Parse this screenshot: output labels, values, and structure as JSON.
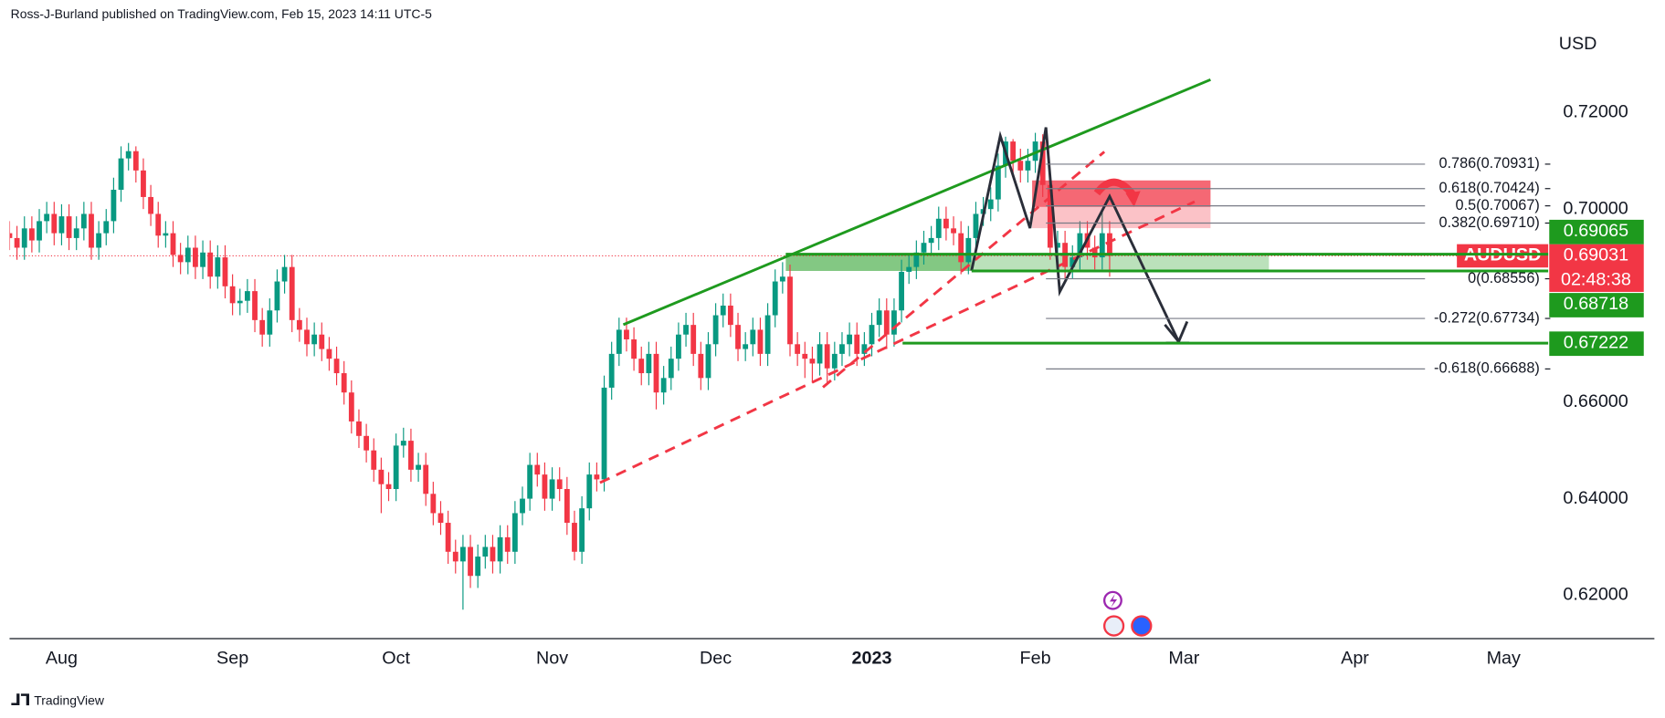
{
  "chart_data": {
    "type": "candlestick",
    "header": "Ross-J-Burland published on TradingView.com, Feb 15, 2023 14:11 UTC-5",
    "footer": "TradingView",
    "currency": "USD",
    "symbol": "AUDUSD",
    "price": 0.69031,
    "countdown": "02:48:38",
    "up_color": "#089981",
    "down_color": "#f23645",
    "price_color": "#f23645",
    "level_color": "#1e9a1e",
    "levels": [
      0.69065,
      0.68718,
      0.67222
    ],
    "fib": [
      {
        "value": 0.70931,
        "label": "0.786(0.70931)"
      },
      {
        "value": 0.70424,
        "label": "0.618(0.70424)"
      },
      {
        "value": 0.70067,
        "label": "0.5(0.70067)"
      },
      {
        "value": 0.6971,
        "label": "0.382(0.69710)"
      },
      {
        "value": 0.68556,
        "label": "0(0.68556)"
      },
      {
        "value": 0.67734,
        "label": "-0.272(0.67734)"
      },
      {
        "value": 0.66688,
        "label": "-0.618(0.66688)"
      }
    ],
    "ylim": [
      0.611,
      0.738
    ],
    "yticks": [
      {
        "value": 0.72,
        "label": "0.72000"
      },
      {
        "value": 0.7,
        "label": "0.70000"
      },
      {
        "value": 0.66,
        "label": "0.66000"
      },
      {
        "value": 0.64,
        "label": "0.64000"
      },
      {
        "value": 0.62,
        "label": "0.62000"
      }
    ],
    "xlim": [
      0,
      207
    ],
    "xticks": [
      {
        "value": 7,
        "label": "Aug"
      },
      {
        "value": 30,
        "label": "Sep"
      },
      {
        "value": 52,
        "label": "Oct"
      },
      {
        "value": 73,
        "label": "Nov"
      },
      {
        "value": 95,
        "label": "Dec"
      },
      {
        "value": 116,
        "label": "2023",
        "bold": true
      },
      {
        "value": 138,
        "label": "Feb"
      },
      {
        "value": 158,
        "label": "Mar"
      },
      {
        "value": 181,
        "label": "Apr"
      },
      {
        "value": 201,
        "label": "May"
      }
    ],
    "candles": [
      [
        0.695,
        0.6975,
        0.6915,
        0.694
      ],
      [
        0.694,
        0.6965,
        0.6895,
        0.692
      ],
      [
        0.692,
        0.6985,
        0.6895,
        0.696
      ],
      [
        0.696,
        0.6985,
        0.691,
        0.6935
      ],
      [
        0.6935,
        0.7,
        0.691,
        0.6975
      ],
      [
        0.6975,
        0.7015,
        0.695,
        0.699
      ],
      [
        0.699,
        0.7015,
        0.6925,
        0.695
      ],
      [
        0.695,
        0.701,
        0.6925,
        0.6985
      ],
      [
        0.6985,
        0.701,
        0.6915,
        0.694
      ],
      [
        0.694,
        0.6985,
        0.6915,
        0.696
      ],
      [
        0.696,
        0.7015,
        0.6935,
        0.699
      ],
      [
        0.699,
        0.7015,
        0.6895,
        0.692
      ],
      [
        0.692,
        0.6975,
        0.6895,
        0.695
      ],
      [
        0.695,
        0.7,
        0.6925,
        0.6975
      ],
      [
        0.6975,
        0.7065,
        0.695,
        0.704
      ],
      [
        0.704,
        0.713,
        0.7015,
        0.7105
      ],
      [
        0.7105,
        0.7137,
        0.708,
        0.712
      ],
      [
        0.712,
        0.713,
        0.7055,
        0.708
      ],
      [
        0.708,
        0.7105,
        0.7,
        0.7025
      ],
      [
        0.7025,
        0.705,
        0.6965,
        0.699
      ],
      [
        0.699,
        0.7015,
        0.692,
        0.6945
      ],
      [
        0.6945,
        0.6975,
        0.692,
        0.695
      ],
      [
        0.695,
        0.6975,
        0.688,
        0.6905
      ],
      [
        0.6905,
        0.693,
        0.6865,
        0.689
      ],
      [
        0.689,
        0.6945,
        0.6865,
        0.692
      ],
      [
        0.692,
        0.6945,
        0.6855,
        0.688
      ],
      [
        0.688,
        0.6935,
        0.6855,
        0.691
      ],
      [
        0.691,
        0.6935,
        0.6835,
        0.686
      ],
      [
        0.686,
        0.6925,
        0.6835,
        0.69
      ],
      [
        0.69,
        0.6925,
        0.6815,
        0.684
      ],
      [
        0.684,
        0.6865,
        0.678,
        0.6805
      ],
      [
        0.6805,
        0.6835,
        0.678,
        0.681
      ],
      [
        0.681,
        0.6855,
        0.6785,
        0.683
      ],
      [
        0.683,
        0.6855,
        0.6745,
        0.677
      ],
      [
        0.677,
        0.6795,
        0.6715,
        0.674
      ],
      [
        0.674,
        0.6815,
        0.6715,
        0.679
      ],
      [
        0.679,
        0.6875,
        0.6765,
        0.685
      ],
      [
        0.685,
        0.6905,
        0.6825,
        0.688
      ],
      [
        0.688,
        0.6905,
        0.6745,
        0.677
      ],
      [
        0.677,
        0.6795,
        0.6725,
        0.675
      ],
      [
        0.675,
        0.6775,
        0.6695,
        0.672
      ],
      [
        0.672,
        0.6765,
        0.6695,
        0.674
      ],
      [
        0.674,
        0.6765,
        0.6685,
        0.671
      ],
      [
        0.671,
        0.6735,
        0.6665,
        0.669
      ],
      [
        0.669,
        0.6715,
        0.6635,
        0.666
      ],
      [
        0.666,
        0.6685,
        0.6595,
        0.662
      ],
      [
        0.662,
        0.6645,
        0.6535,
        0.656
      ],
      [
        0.656,
        0.6585,
        0.6505,
        0.653
      ],
      [
        0.653,
        0.6555,
        0.6475,
        0.65
      ],
      [
        0.65,
        0.6525,
        0.6435,
        0.646
      ],
      [
        0.646,
        0.6485,
        0.637,
        0.643
      ],
      [
        0.643,
        0.6455,
        0.6395,
        0.642
      ],
      [
        0.642,
        0.6535,
        0.6395,
        0.651
      ],
      [
        0.651,
        0.6547,
        0.6485,
        0.652
      ],
      [
        0.652,
        0.6545,
        0.6435,
        0.646
      ],
      [
        0.646,
        0.6495,
        0.6435,
        0.647
      ],
      [
        0.647,
        0.6495,
        0.6385,
        0.641
      ],
      [
        0.641,
        0.6435,
        0.6345,
        0.637
      ],
      [
        0.637,
        0.6395,
        0.6325,
        0.635
      ],
      [
        0.635,
        0.6375,
        0.6265,
        0.629
      ],
      [
        0.629,
        0.6315,
        0.6245,
        0.627
      ],
      [
        0.627,
        0.6325,
        0.617,
        0.63
      ],
      [
        0.63,
        0.6325,
        0.6215,
        0.624
      ],
      [
        0.624,
        0.6305,
        0.6215,
        0.628
      ],
      [
        0.628,
        0.6325,
        0.6255,
        0.63
      ],
      [
        0.63,
        0.6325,
        0.6245,
        0.627
      ],
      [
        0.627,
        0.6345,
        0.6245,
        0.632
      ],
      [
        0.632,
        0.6345,
        0.6265,
        0.629
      ],
      [
        0.629,
        0.6395,
        0.6265,
        0.637
      ],
      [
        0.637,
        0.6425,
        0.6345,
        0.64
      ],
      [
        0.64,
        0.6495,
        0.6375,
        0.647
      ],
      [
        0.647,
        0.6495,
        0.6425,
        0.645
      ],
      [
        0.645,
        0.6475,
        0.6375,
        0.64
      ],
      [
        0.64,
        0.6465,
        0.6375,
        0.644
      ],
      [
        0.644,
        0.6465,
        0.6395,
        0.642
      ],
      [
        0.642,
        0.6445,
        0.6325,
        0.635
      ],
      [
        0.635,
        0.6375,
        0.6272,
        0.629
      ],
      [
        0.629,
        0.6405,
        0.6265,
        0.638
      ],
      [
        0.638,
        0.6475,
        0.6355,
        0.645
      ],
      [
        0.645,
        0.6475,
        0.6415,
        0.644
      ],
      [
        0.644,
        0.6655,
        0.6415,
        0.663
      ],
      [
        0.663,
        0.6725,
        0.6605,
        0.67
      ],
      [
        0.67,
        0.6775,
        0.6675,
        0.675
      ],
      [
        0.675,
        0.6775,
        0.6705,
        0.673
      ],
      [
        0.673,
        0.6755,
        0.6665,
        0.669
      ],
      [
        0.669,
        0.6715,
        0.6635,
        0.666
      ],
      [
        0.666,
        0.6725,
        0.6635,
        0.67
      ],
      [
        0.67,
        0.6725,
        0.6585,
        0.662
      ],
      [
        0.662,
        0.6675,
        0.6595,
        0.665
      ],
      [
        0.665,
        0.6715,
        0.6625,
        0.669
      ],
      [
        0.669,
        0.6765,
        0.6665,
        0.674
      ],
      [
        0.674,
        0.6785,
        0.6715,
        0.676
      ],
      [
        0.676,
        0.6785,
        0.6675,
        0.67
      ],
      [
        0.67,
        0.6725,
        0.6625,
        0.665
      ],
      [
        0.665,
        0.6745,
        0.6625,
        0.672
      ],
      [
        0.672,
        0.6805,
        0.6695,
        0.678
      ],
      [
        0.678,
        0.6825,
        0.6755,
        0.68
      ],
      [
        0.68,
        0.6825,
        0.6735,
        0.676
      ],
      [
        0.676,
        0.6785,
        0.6685,
        0.671
      ],
      [
        0.671,
        0.6745,
        0.6685,
        0.672
      ],
      [
        0.672,
        0.6775,
        0.6695,
        0.675
      ],
      [
        0.675,
        0.6775,
        0.6675,
        0.67
      ],
      [
        0.67,
        0.6805,
        0.6675,
        0.678
      ],
      [
        0.678,
        0.6875,
        0.6755,
        0.685
      ],
      [
        0.685,
        0.689,
        0.6825,
        0.686
      ],
      [
        0.686,
        0.6885,
        0.6695,
        0.672
      ],
      [
        0.672,
        0.6745,
        0.6675,
        0.67
      ],
      [
        0.67,
        0.6725,
        0.665,
        0.669
      ],
      [
        0.669,
        0.6715,
        0.664,
        0.668
      ],
      [
        0.668,
        0.6745,
        0.6655,
        0.672
      ],
      [
        0.672,
        0.6745,
        0.664,
        0.667
      ],
      [
        0.667,
        0.6725,
        0.6645,
        0.67
      ],
      [
        0.67,
        0.6745,
        0.6675,
        0.672
      ],
      [
        0.672,
        0.6765,
        0.6695,
        0.674
      ],
      [
        0.674,
        0.6765,
        0.6675,
        0.67
      ],
      [
        0.67,
        0.6745,
        0.6675,
        0.672
      ],
      [
        0.672,
        0.6785,
        0.6695,
        0.676
      ],
      [
        0.676,
        0.6815,
        0.6735,
        0.679
      ],
      [
        0.679,
        0.6815,
        0.671,
        0.674
      ],
      [
        0.674,
        0.6815,
        0.6715,
        0.679
      ],
      [
        0.679,
        0.6895,
        0.6765,
        0.687
      ],
      [
        0.687,
        0.6905,
        0.6845,
        0.688
      ],
      [
        0.688,
        0.6935,
        0.6855,
        0.691
      ],
      [
        0.691,
        0.6955,
        0.6885,
        0.693
      ],
      [
        0.693,
        0.6965,
        0.6905,
        0.694
      ],
      [
        0.694,
        0.7005,
        0.6915,
        0.698
      ],
      [
        0.698,
        0.7005,
        0.6935,
        0.696
      ],
      [
        0.696,
        0.6985,
        0.6925,
        0.695
      ],
      [
        0.695,
        0.6975,
        0.6865,
        0.689
      ],
      [
        0.689,
        0.6965,
        0.6865,
        0.694
      ],
      [
        0.694,
        0.7015,
        0.6915,
        0.699
      ],
      [
        0.699,
        0.7025,
        0.6965,
        0.7
      ],
      [
        0.7,
        0.7045,
        0.6975,
        0.702
      ],
      [
        0.702,
        0.7115,
        0.6995,
        0.709
      ],
      [
        0.709,
        0.715,
        0.7065,
        0.714
      ],
      [
        0.714,
        0.7145,
        0.7075,
        0.71
      ],
      [
        0.71,
        0.7125,
        0.7055,
        0.708
      ],
      [
        0.708,
        0.7125,
        0.7055,
        0.71
      ],
      [
        0.71,
        0.7158,
        0.7075,
        0.714
      ],
      [
        0.714,
        0.7155,
        0.7025,
        0.705
      ],
      [
        0.705,
        0.7075,
        0.6895,
        0.692
      ],
      [
        0.692,
        0.6955,
        0.687,
        0.693
      ],
      [
        0.693,
        0.6955,
        0.6855,
        0.688
      ],
      [
        0.688,
        0.6925,
        0.6855,
        0.69
      ],
      [
        0.69,
        0.6975,
        0.6875,
        0.695
      ],
      [
        0.695,
        0.6975,
        0.6895,
        0.692
      ],
      [
        0.692,
        0.6945,
        0.6875,
        0.69
      ],
      [
        0.69,
        0.6995,
        0.6875,
        0.695
      ],
      [
        0.695,
        0.6975,
        0.686,
        0.6903
      ]
    ]
  }
}
